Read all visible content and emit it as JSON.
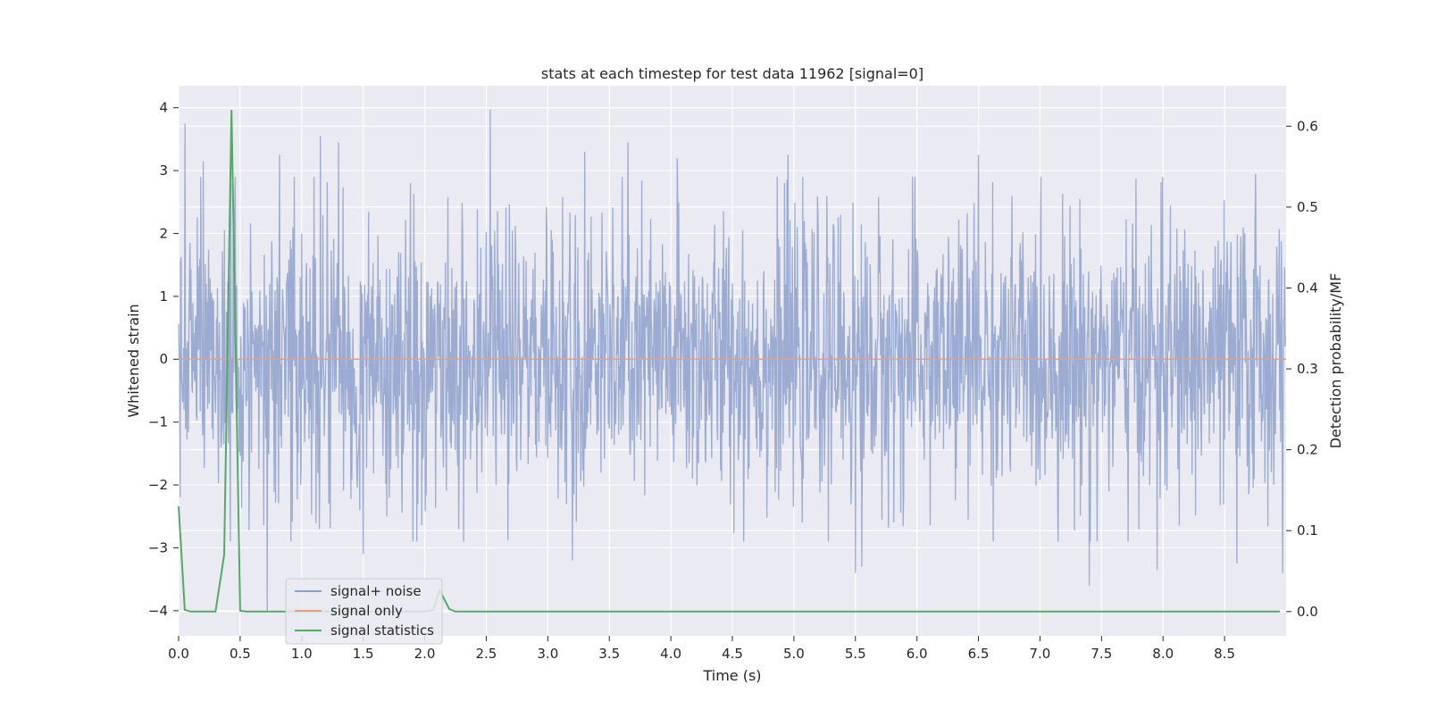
{
  "chart_data": {
    "type": "line",
    "title": "stats at each timestep for test data 11962 [signal=0]",
    "xlabel": "Time (s)",
    "ylabel": "Whitened strain",
    "y2label": "Detection probability/MF",
    "xlim": [
      0.0,
      9.0
    ],
    "ylim": [
      -4.4,
      4.35
    ],
    "y2lim": [
      -0.03,
      0.65
    ],
    "xticks": [
      0.0,
      0.5,
      1.0,
      1.5,
      2.0,
      2.5,
      3.0,
      3.5,
      4.0,
      4.5,
      5.0,
      5.5,
      6.0,
      6.5,
      7.0,
      7.5,
      8.0,
      8.5
    ],
    "xtick_labels": [
      "0.0",
      "0.5",
      "1.0",
      "1.5",
      "2.0",
      "2.5",
      "3.0",
      "3.5",
      "4.0",
      "4.5",
      "5.0",
      "5.5",
      "6.0",
      "6.5",
      "7.0",
      "7.5",
      "8.0",
      "8.5"
    ],
    "yticks": [
      4,
      3,
      2,
      1,
      0,
      -1,
      -2,
      -3,
      -4
    ],
    "ytick_labels": [
      "4",
      "3",
      "2",
      "1",
      "0",
      "−1",
      "−2",
      "−3",
      "−4"
    ],
    "y2ticks": [
      0.6,
      0.5,
      0.4,
      0.3,
      0.2,
      0.1,
      0.0
    ],
    "y2tick_labels": [
      "0.6",
      "0.5",
      "0.4",
      "0.3",
      "0.2",
      "0.1",
      "0.0"
    ],
    "grid": true,
    "legend_position": "lower-left",
    "series": [
      {
        "name": "signal+ noise",
        "color": "#8da0cb",
        "axis": "left",
        "sample_rate": 250,
        "envelope": {
          "typical_amplitude": 1.1,
          "x_end": 9.0
        },
        "notable_peaks": [
          {
            "x": 0.05,
            "y": 3.75
          },
          {
            "x": 0.2,
            "y": 3.15
          },
          {
            "x": 0.82,
            "y": 3.25
          },
          {
            "x": 1.15,
            "y": 3.55
          },
          {
            "x": 1.3,
            "y": 3.45
          },
          {
            "x": 2.53,
            "y": 3.97
          },
          {
            "x": 3.3,
            "y": 3.3
          },
          {
            "x": 3.65,
            "y": 3.45
          },
          {
            "x": 4.05,
            "y": 3.2
          },
          {
            "x": 4.95,
            "y": 3.25
          },
          {
            "x": 6.5,
            "y": 3.25
          },
          {
            "x": 8.75,
            "y": 2.95
          },
          {
            "x": 0.72,
            "y": -4.0
          },
          {
            "x": 1.5,
            "y": -3.1
          },
          {
            "x": 3.2,
            "y": -3.2
          },
          {
            "x": 5.5,
            "y": -3.4
          },
          {
            "x": 5.55,
            "y": -3.3
          },
          {
            "x": 7.4,
            "y": -3.6
          },
          {
            "x": 7.95,
            "y": -3.35
          },
          {
            "x": 8.6,
            "y": -3.25
          },
          {
            "x": 8.97,
            "y": -3.4
          }
        ]
      },
      {
        "name": "signal only",
        "color": "#e5a07f",
        "axis": "left",
        "x": [
          0.0,
          9.0
        ],
        "y": [
          0.0,
          0.0
        ]
      },
      {
        "name": "signal statistics",
        "color": "#55a868",
        "axis": "right",
        "x": [
          0.0,
          0.05,
          0.1,
          0.2,
          0.3,
          0.37,
          0.43,
          0.5,
          0.55,
          1.0,
          1.5,
          2.0,
          2.07,
          2.12,
          2.2,
          2.25,
          3.0,
          5.0,
          7.0,
          8.95
        ],
        "y": [
          0.13,
          0.002,
          0.0,
          0.0,
          0.0,
          0.07,
          0.62,
          0.001,
          0.0,
          0.0,
          0.0,
          0.0,
          0.002,
          0.027,
          0.003,
          0.0,
          0.0,
          0.0,
          0.0,
          0.0
        ]
      }
    ]
  }
}
